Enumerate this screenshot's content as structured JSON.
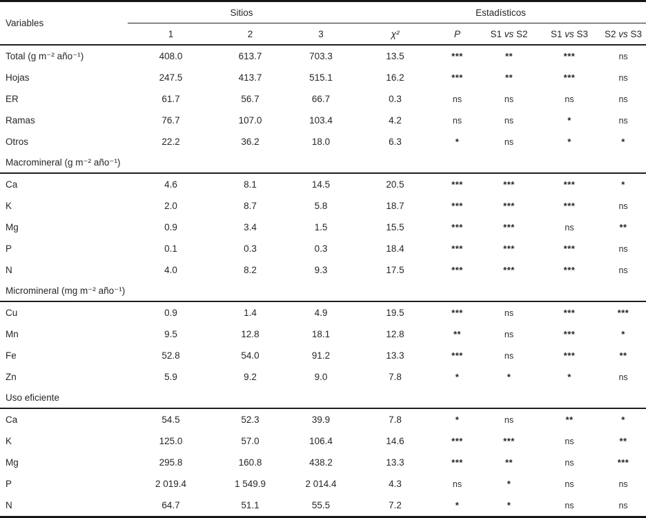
{
  "table": {
    "headers": {
      "variables": "Variables",
      "sitios": "Sitios",
      "estadisticos": "Estadísticos",
      "site_cols": [
        "1",
        "2",
        "3"
      ],
      "chi": "χ²",
      "p": "P",
      "comparisons": [
        {
          "a": "S1",
          "vs": "vs",
          "b": "S2"
        },
        {
          "a": "S1",
          "vs": "vs",
          "b": "S3"
        },
        {
          "a": "S2",
          "vs": "vs",
          "b": "S3"
        }
      ]
    },
    "sections": [
      {
        "header": null,
        "rows": [
          {
            "label": "Total (g m⁻² año⁻¹)",
            "values": [
              "408.0",
              "613.7",
              "703.3",
              "13.5"
            ],
            "sig": [
              "***",
              "**",
              "***",
              "ns"
            ]
          },
          {
            "label": "Hojas",
            "values": [
              "247.5",
              "413.7",
              "515.1",
              "16.2"
            ],
            "sig": [
              "***",
              "**",
              "***",
              "ns"
            ]
          },
          {
            "label": "ER",
            "values": [
              "61.7",
              "56.7",
              "66.7",
              "0.3"
            ],
            "sig": [
              "ns",
              "ns",
              "ns",
              "ns"
            ]
          },
          {
            "label": "Ramas",
            "values": [
              "76.7",
              "107.0",
              "103.4",
              "4.2"
            ],
            "sig": [
              "ns",
              "ns",
              "*",
              "ns"
            ]
          },
          {
            "label": "Otros",
            "values": [
              "22.2",
              "36.2",
              "18.0",
              "6.3"
            ],
            "sig": [
              "*",
              "ns",
              "*",
              "*"
            ]
          }
        ]
      },
      {
        "header": "Macromineral (g m⁻² año⁻¹)",
        "rows": [
          {
            "label": "Ca",
            "values": [
              "4.6",
              "8.1",
              "14.5",
              "20.5"
            ],
            "sig": [
              "***",
              "***",
              "***",
              "*"
            ]
          },
          {
            "label": "K",
            "values": [
              "2.0",
              "8.7",
              "5.8",
              "18.7"
            ],
            "sig": [
              "***",
              "***",
              "***",
              "ns"
            ]
          },
          {
            "label": "Mg",
            "values": [
              "0.9",
              "3.4",
              "1.5",
              "15.5"
            ],
            "sig": [
              "***",
              "***",
              "ns",
              "**"
            ]
          },
          {
            "label": "P",
            "values": [
              "0.1",
              "0.3",
              "0.3",
              "18.4"
            ],
            "sig": [
              "***",
              "***",
              "***",
              "ns"
            ]
          },
          {
            "label": "N",
            "values": [
              "4.0",
              "8.2",
              "9.3",
              "17.5"
            ],
            "sig": [
              "***",
              "***",
              "***",
              "ns"
            ]
          }
        ]
      },
      {
        "header": "Micromineral (mg m⁻² año⁻¹)",
        "rows": [
          {
            "label": "Cu",
            "values": [
              "0.9",
              "1.4",
              "4.9",
              "19.5"
            ],
            "sig": [
              "***",
              "ns",
              "***",
              "***"
            ]
          },
          {
            "label": "Mn",
            "values": [
              "9.5",
              "12.8",
              "18.1",
              "12.8"
            ],
            "sig": [
              "**",
              "ns",
              "***",
              "*"
            ]
          },
          {
            "label": "Fe",
            "values": [
              "52.8",
              "54.0",
              "91.2",
              "13.3"
            ],
            "sig": [
              "***",
              "ns",
              "***",
              "**"
            ]
          },
          {
            "label": "Zn",
            "values": [
              "5.9",
              "9.2",
              "9.0",
              "7.8"
            ],
            "sig": [
              "*",
              "*",
              "*",
              "ns"
            ]
          }
        ]
      },
      {
        "header": "Uso eficiente",
        "rows": [
          {
            "label": "Ca",
            "values": [
              "54.5",
              "52.3",
              "39.9",
              "7.8"
            ],
            "sig": [
              "*",
              "ns",
              "**",
              "*"
            ]
          },
          {
            "label": "K",
            "values": [
              "125.0",
              "57.0",
              "106.4",
              "14.6"
            ],
            "sig": [
              "***",
              "***",
              "ns",
              "**"
            ]
          },
          {
            "label": "Mg",
            "values": [
              "295.8",
              "160.8",
              "438.2",
              "13.3"
            ],
            "sig": [
              "***",
              "**",
              "ns",
              "***"
            ]
          },
          {
            "label": "P",
            "values": [
              "2 019.4",
              "1 549.9",
              "2 014.4",
              "4.3"
            ],
            "sig": [
              "ns",
              "*",
              "ns",
              "ns"
            ]
          },
          {
            "label": "N",
            "values": [
              "64.7",
              "51.1",
              "55.5",
              "7.2"
            ],
            "sig": [
              "*",
              "*",
              "ns",
              "ns"
            ]
          }
        ]
      }
    ]
  }
}
